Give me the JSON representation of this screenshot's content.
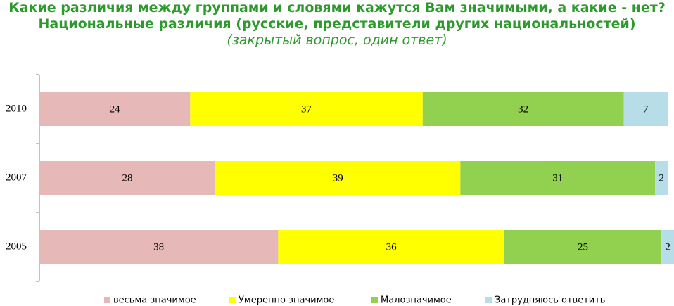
{
  "chart_data": {
    "type": "stacked-bar",
    "title": "Какие различия между группами и словями кажутся Вам значимыми, а какие - нет? Национальные различия (русские, представители других национальностей)",
    "subtitle": "(закрытый вопрос, один ответ)",
    "categories": [
      "2010",
      "2007",
      "2005"
    ],
    "series": [
      {
        "name": "весьма значимое",
        "color": "#e6b9b8",
        "values": [
          24,
          28,
          38
        ]
      },
      {
        "name": "Умеренно значимое",
        "color": "#ffff00",
        "values": [
          37,
          39,
          36
        ]
      },
      {
        "name": "Малозначимое",
        "color": "#92d050",
        "values": [
          32,
          31,
          25
        ]
      },
      {
        "name": "Затрудняюсь ответить",
        "color": "#b7dee8",
        "values": [
          7,
          2,
          2
        ]
      }
    ],
    "xlim": [
      0,
      101
    ],
    "orientation": "horizontal",
    "legend": "bottom"
  }
}
